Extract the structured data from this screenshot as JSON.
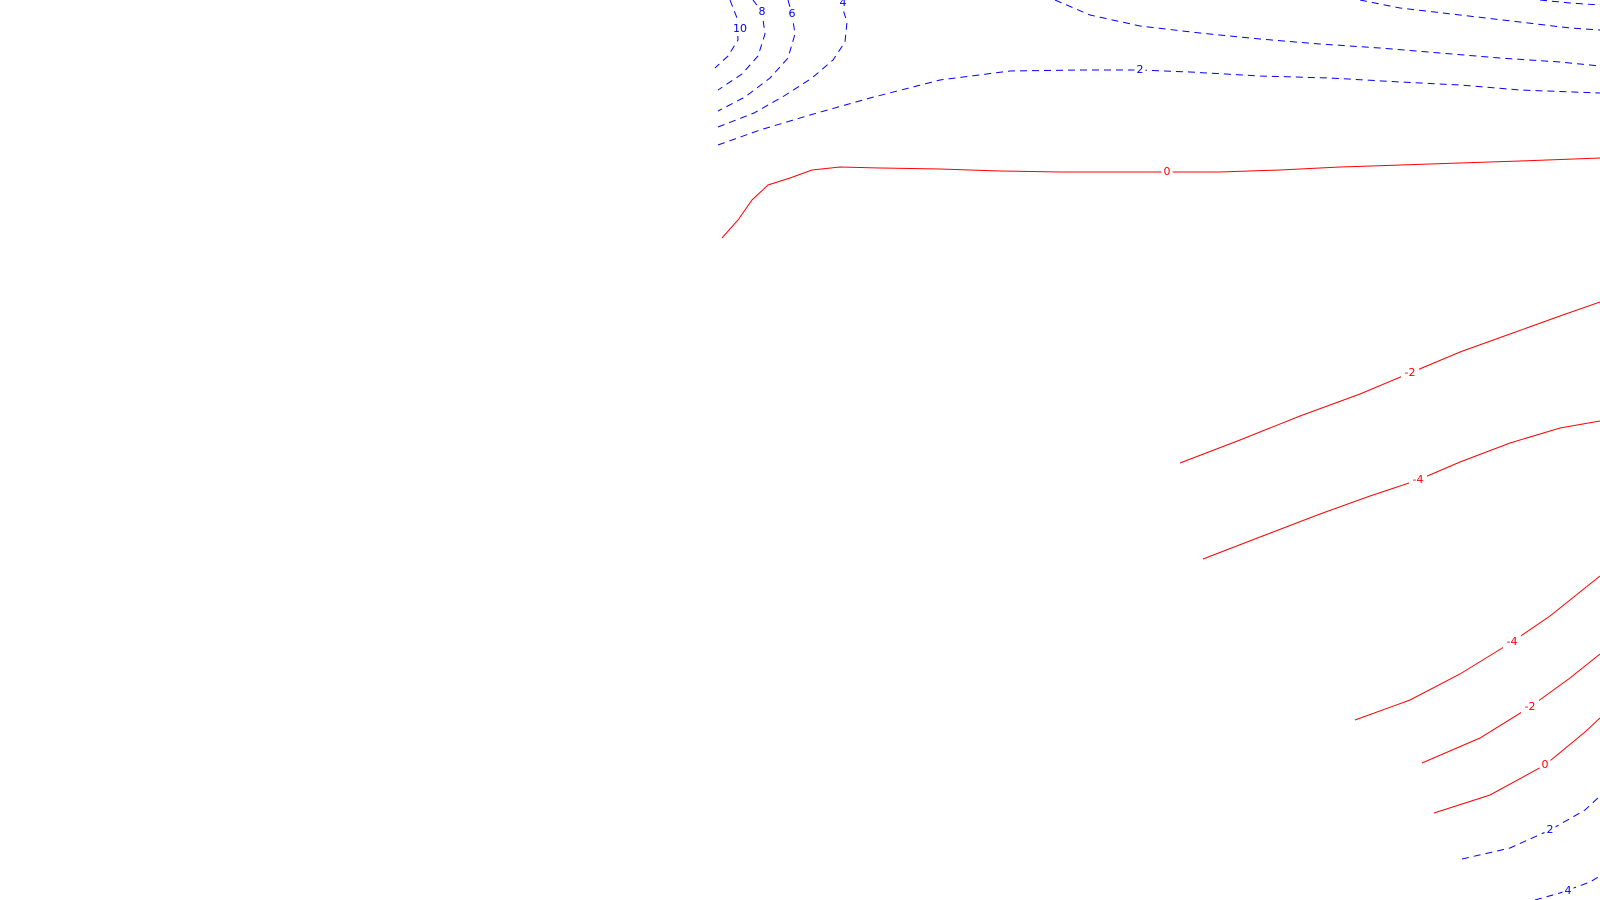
{
  "chart_data": {
    "type": "contour",
    "title": "",
    "xlabel": "",
    "ylabel": "",
    "styles": {
      "positive": {
        "color": "#0000ff",
        "dash": "dashed"
      },
      "zero_negative": {
        "color": "#ff0000",
        "dash": "solid"
      }
    },
    "contours": [
      {
        "level": 10,
        "sign": "positive",
        "label": "10"
      },
      {
        "level": 8,
        "sign": "positive",
        "label": "8"
      },
      {
        "level": 6,
        "sign": "positive",
        "label": "6"
      },
      {
        "level": 4,
        "sign": "positive",
        "label": "4"
      },
      {
        "level": 2,
        "sign": "positive",
        "label": "2"
      },
      {
        "level": 2,
        "sign": "positive",
        "label": ""
      },
      {
        "level": 2,
        "sign": "positive",
        "label": ""
      },
      {
        "level": 2,
        "sign": "positive",
        "label": ""
      },
      {
        "level": 0,
        "sign": "zero_negative",
        "label": "0"
      },
      {
        "level": -2,
        "sign": "zero_negative",
        "label": "-2"
      },
      {
        "level": -4,
        "sign": "zero_negative",
        "label": "-4"
      },
      {
        "level": -4,
        "sign": "zero_negative",
        "label": "-4"
      },
      {
        "level": -2,
        "sign": "zero_negative",
        "label": "-2"
      },
      {
        "level": 0,
        "sign": "zero_negative",
        "label": "0"
      },
      {
        "level": 2,
        "sign": "positive",
        "label": "2"
      },
      {
        "level": 4,
        "sign": "positive",
        "label": "4"
      }
    ]
  }
}
